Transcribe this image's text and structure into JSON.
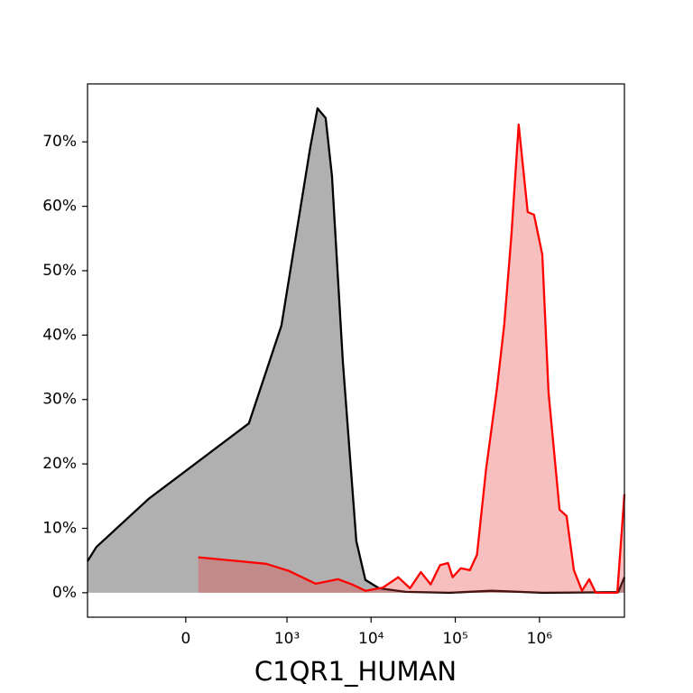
{
  "chart_data": {
    "type": "area",
    "xlabel": "C1QR1_HUMAN",
    "xscale": "asinh",
    "xlim": [
      -920,
      10200000
    ],
    "ylim": [
      -3.8,
      79
    ],
    "xticks": [
      0,
      {
        "value": 1000,
        "label": "10³"
      },
      {
        "value": 10000,
        "label": "10⁴"
      },
      {
        "value": 100000,
        "label": "10⁵"
      },
      {
        "value": 1000000,
        "label": "10⁶"
      }
    ],
    "yticks": [
      {
        "value": 0,
        "label": "0%"
      },
      {
        "value": 10,
        "label": "10%"
      },
      {
        "value": 20,
        "label": "20%"
      },
      {
        "value": 30,
        "label": "30%"
      },
      {
        "value": 40,
        "label": "40%"
      },
      {
        "value": 50,
        "label": "50%"
      },
      {
        "value": 60,
        "label": "60%"
      },
      {
        "value": 70,
        "label": "70%"
      }
    ],
    "series": [
      {
        "color": "#000000",
        "fill": "rgba(0,0,0,0.31)",
        "x": [
          -920,
          -720,
          -150,
          343,
          857,
          1898,
          2312,
          2890,
          3430,
          4610,
          6690,
          8550,
          12400,
          25600,
          86000,
          269000,
          1100000,
          8600000,
          10200000
        ],
        "values": [
          4.9,
          7.1,
          14.6,
          26.3,
          41.5,
          69.2,
          75.2,
          73.7,
          64.7,
          36.0,
          8.0,
          2.0,
          0.7,
          0.14,
          0,
          0.3,
          0,
          0.1,
          2.4
        ]
      },
      {
        "color": "#ff0000",
        "fill": "rgba(235,60,60,0.33)",
        "x": [
          44,
          560,
          1047,
          2200,
          4080,
          5910,
          8550,
          13800,
          21000,
          29000,
          39000,
          51000,
          66000,
          82000,
          93000,
          116000,
          149000,
          181000,
          232000,
          313000,
          381000,
          465000,
          566000,
          725000,
          860000,
          1080000,
          1280000,
          1730000,
          2100000,
          2560000,
          3200000,
          3900000,
          4650000,
          8400000,
          10200000
        ],
        "values": [
          5.5,
          4.5,
          3.4,
          1.4,
          2.1,
          1.3,
          0.3,
          0.8,
          2.4,
          0.7,
          3.2,
          1.3,
          4.3,
          4.6,
          2.4,
          3.8,
          3.5,
          5.9,
          19.2,
          31.8,
          41.6,
          55.6,
          72.7,
          59.1,
          58.7,
          52.5,
          31.1,
          12.9,
          11.9,
          3.5,
          0.3,
          2.1,
          0,
          0,
          15.3
        ]
      }
    ]
  }
}
